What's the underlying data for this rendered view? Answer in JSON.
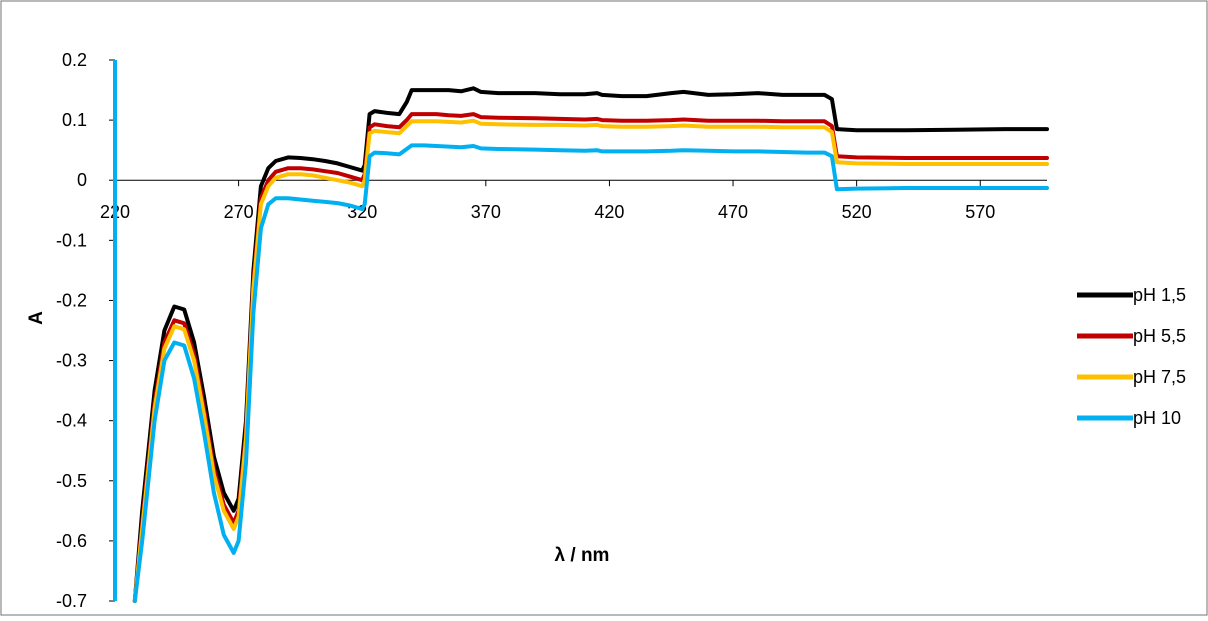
{
  "chart_data": {
    "type": "line",
    "title": "",
    "xlabel": "λ / nm",
    "ylabel": "A",
    "xlim": [
      220,
      597
    ],
    "ylim": [
      -0.7,
      0.2
    ],
    "x_ticks": [
      220,
      270,
      320,
      370,
      420,
      470,
      520,
      570
    ],
    "y_ticks": [
      0.2,
      0.1,
      0,
      -0.1,
      -0.2,
      -0.3,
      -0.4,
      -0.5,
      -0.6,
      -0.7
    ],
    "x_tick_labels": [
      "220",
      "270",
      "320",
      "370",
      "420",
      "470",
      "520",
      "570"
    ],
    "y_tick_labels": [
      "0.2",
      "0.1",
      "0",
      "-0.1",
      "-0.2",
      "-0.3",
      "-0.4",
      "-0.5",
      "-0.6",
      "-0.7"
    ],
    "grid": false,
    "legend_position": "right",
    "series": [
      {
        "name": "pH 1,5",
        "color": "#000000",
        "x": [
          228,
          231,
          236,
          240,
          244,
          248,
          252,
          256,
          260,
          264,
          268,
          270,
          273,
          276,
          279,
          282,
          285,
          290,
          295,
          300,
          305,
          310,
          315,
          320,
          321,
          323,
          325,
          330,
          335,
          338,
          340,
          345,
          350,
          355,
          360,
          365,
          368,
          375,
          390,
          400,
          410,
          415,
          417,
          425,
          435,
          445,
          450,
          460,
          470,
          480,
          490,
          500,
          507,
          510,
          512,
          520,
          540,
          560,
          580,
          597
        ],
        "y": [
          -0.7,
          -0.55,
          -0.35,
          -0.25,
          -0.21,
          -0.215,
          -0.27,
          -0.36,
          -0.46,
          -0.52,
          -0.55,
          -0.53,
          -0.4,
          -0.15,
          -0.01,
          0.02,
          0.032,
          0.038,
          0.037,
          0.035,
          0.032,
          0.028,
          0.022,
          0.016,
          0.025,
          0.11,
          0.115,
          0.112,
          0.11,
          0.13,
          0.15,
          0.15,
          0.15,
          0.15,
          0.148,
          0.153,
          0.147,
          0.145,
          0.145,
          0.143,
          0.143,
          0.145,
          0.142,
          0.14,
          0.14,
          0.145,
          0.147,
          0.142,
          0.143,
          0.145,
          0.142,
          0.142,
          0.142,
          0.135,
          0.085,
          0.083,
          0.083,
          0.084,
          0.085,
          0.085
        ]
      },
      {
        "name": "pH 5,5",
        "color": "#C00000",
        "x": [
          228,
          231,
          236,
          240,
          244,
          248,
          252,
          256,
          260,
          264,
          268,
          270,
          273,
          276,
          279,
          282,
          285,
          290,
          295,
          300,
          305,
          310,
          315,
          320,
          321,
          323,
          325,
          330,
          335,
          338,
          340,
          345,
          350,
          355,
          360,
          365,
          368,
          375,
          390,
          400,
          410,
          415,
          417,
          425,
          435,
          445,
          450,
          460,
          470,
          480,
          490,
          500,
          507,
          510,
          512,
          520,
          540,
          560,
          580,
          597
        ],
        "y": [
          -0.7,
          -0.57,
          -0.37,
          -0.27,
          -0.233,
          -0.238,
          -0.29,
          -0.38,
          -0.48,
          -0.54,
          -0.57,
          -0.55,
          -0.42,
          -0.17,
          -0.03,
          0.0,
          0.014,
          0.02,
          0.02,
          0.018,
          0.015,
          0.012,
          0.006,
          0.0,
          0.01,
          0.088,
          0.093,
          0.09,
          0.088,
          0.1,
          0.11,
          0.11,
          0.11,
          0.108,
          0.107,
          0.11,
          0.105,
          0.104,
          0.103,
          0.102,
          0.101,
          0.102,
          0.1,
          0.099,
          0.099,
          0.1,
          0.101,
          0.099,
          0.099,
          0.099,
          0.098,
          0.098,
          0.098,
          0.09,
          0.04,
          0.038,
          0.037,
          0.037,
          0.037,
          0.037
        ]
      },
      {
        "name": "pH 7,5",
        "color": "#FFC000",
        "x": [
          228,
          231,
          236,
          240,
          244,
          248,
          252,
          256,
          260,
          264,
          268,
          270,
          273,
          276,
          279,
          282,
          285,
          290,
          295,
          300,
          305,
          310,
          315,
          320,
          321,
          323,
          325,
          330,
          335,
          338,
          340,
          345,
          350,
          355,
          360,
          365,
          368,
          375,
          390,
          400,
          410,
          415,
          417,
          425,
          435,
          445,
          450,
          460,
          470,
          480,
          490,
          500,
          507,
          510,
          512,
          520,
          540,
          560,
          580,
          597
        ],
        "y": [
          -0.7,
          -0.58,
          -0.38,
          -0.28,
          -0.243,
          -0.248,
          -0.3,
          -0.39,
          -0.49,
          -0.55,
          -0.58,
          -0.56,
          -0.43,
          -0.18,
          -0.04,
          -0.01,
          0.004,
          0.01,
          0.01,
          0.008,
          0.004,
          0.0,
          -0.004,
          -0.01,
          0.0,
          0.078,
          0.082,
          0.08,
          0.078,
          0.09,
          0.098,
          0.098,
          0.098,
          0.097,
          0.096,
          0.099,
          0.094,
          0.093,
          0.092,
          0.092,
          0.091,
          0.092,
          0.09,
          0.089,
          0.089,
          0.09,
          0.091,
          0.089,
          0.089,
          0.089,
          0.088,
          0.088,
          0.088,
          0.08,
          0.03,
          0.028,
          0.027,
          0.027,
          0.027,
          0.027
        ]
      },
      {
        "name": "pH 10",
        "color": "#00B0F0",
        "x": [
          228,
          231,
          236,
          240,
          244,
          248,
          252,
          256,
          260,
          264,
          268,
          270,
          273,
          276,
          279,
          282,
          285,
          290,
          295,
          300,
          305,
          310,
          315,
          320,
          321,
          323,
          325,
          330,
          335,
          338,
          340,
          345,
          350,
          355,
          360,
          365,
          368,
          375,
          390,
          400,
          410,
          415,
          417,
          425,
          435,
          445,
          450,
          460,
          470,
          480,
          490,
          500,
          507,
          510,
          512,
          520,
          540,
          560,
          580,
          597
        ],
        "y": [
          -0.7,
          -0.6,
          -0.4,
          -0.3,
          -0.27,
          -0.275,
          -0.33,
          -0.42,
          -0.52,
          -0.59,
          -0.62,
          -0.6,
          -0.47,
          -0.22,
          -0.08,
          -0.04,
          -0.03,
          -0.03,
          -0.032,
          -0.034,
          -0.036,
          -0.038,
          -0.042,
          -0.048,
          -0.04,
          0.04,
          0.046,
          0.045,
          0.043,
          0.052,
          0.058,
          0.058,
          0.057,
          0.056,
          0.055,
          0.057,
          0.053,
          0.052,
          0.051,
          0.05,
          0.049,
          0.05,
          0.048,
          0.048,
          0.048,
          0.049,
          0.05,
          0.049,
          0.048,
          0.048,
          0.047,
          0.046,
          0.046,
          0.04,
          -0.015,
          -0.014,
          -0.013,
          -0.013,
          -0.013,
          -0.013
        ]
      }
    ]
  }
}
